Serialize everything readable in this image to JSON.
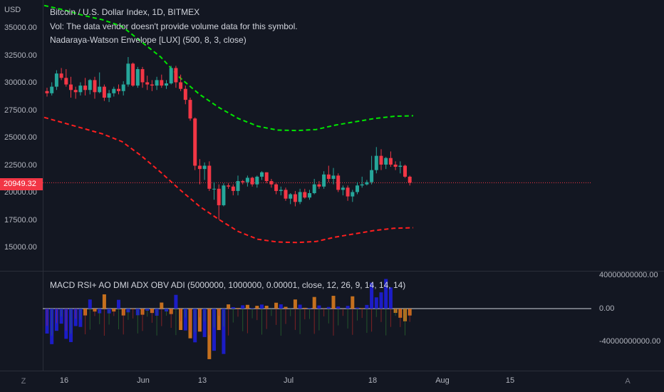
{
  "chart": {
    "currency": "USD",
    "legend_title": "Bitcoin / U.S. Dollar Index, 1D, BITMEX",
    "legend_volume": "Vol: The data vendor doesn't provide volume data for this symbol.",
    "legend_envelope": "Nadaraya-Watson Envelope [LUX] (500, 8, 3, close)",
    "last_price": "20949.32",
    "y_ticks": [
      "35000.00",
      "32500.00",
      "30000.00",
      "27500.00",
      "25000.00",
      "22500.00",
      "20000.00",
      "17500.00",
      "15000.00"
    ],
    "x_ticks": [
      "16",
      "Jun",
      "13",
      "Jul",
      "18",
      "Aug",
      "15"
    ],
    "timezone_button": "Z",
    "auto_scale_button": "A",
    "colors": {
      "up": "#26a69a",
      "down": "#f23645",
      "upper_band": "#00e600",
      "lower_band": "#ff1f1f",
      "background": "#131722"
    }
  },
  "indicator": {
    "legend": "MACD RSI+ AO DMI ADX OBV ADI (5000000, 1000000, 0.00001, close, 12, 26, 9, 14, 14, 14)",
    "axis_ticks": [
      "40000000000.00",
      "0.00",
      "-40000000000.00"
    ]
  },
  "chart_data": {
    "type": "candlestick",
    "candles": [
      [
        29300,
        29600,
        28800,
        29100
      ],
      [
        29100,
        30100,
        28900,
        29700
      ],
      [
        29700,
        31200,
        29400,
        30900
      ],
      [
        30900,
        31400,
        30300,
        30500
      ],
      [
        30500,
        31300,
        29700,
        29900
      ],
      [
        29900,
        30600,
        28700,
        29400
      ],
      [
        29400,
        29700,
        28600,
        29200
      ],
      [
        29200,
        30100,
        28900,
        29800
      ],
      [
        29800,
        30500,
        28900,
        29400
      ],
      [
        29400,
        30400,
        29000,
        30300
      ],
      [
        30300,
        30600,
        28600,
        29200
      ],
      [
        29200,
        31000,
        29100,
        29700
      ],
      [
        29700,
        29900,
        28400,
        28700
      ],
      [
        28700,
        29400,
        28300,
        29100
      ],
      [
        29100,
        29700,
        28800,
        29500
      ],
      [
        29500,
        29900,
        29000,
        29300
      ],
      [
        29300,
        30200,
        28900,
        29900
      ],
      [
        29900,
        32400,
        29700,
        31800
      ],
      [
        31800,
        31900,
        29700,
        29800
      ],
      [
        29800,
        31500,
        29600,
        31300
      ],
      [
        31300,
        31500,
        29600,
        30100
      ],
      [
        30100,
        30700,
        29400,
        29900
      ],
      [
        29900,
        30300,
        29300,
        29800
      ],
      [
        29800,
        30600,
        29400,
        30300
      ],
      [
        30300,
        30800,
        29600,
        29800
      ],
      [
        29800,
        30300,
        29500,
        30000
      ],
      [
        30000,
        31600,
        29900,
        31400
      ],
      [
        31400,
        31600,
        29600,
        30100
      ],
      [
        30100,
        30800,
        29300,
        29500
      ],
      [
        29500,
        29800,
        28100,
        28500
      ],
      [
        28500,
        28700,
        26600,
        26800
      ],
      [
        26800,
        26900,
        22100,
        22500
      ],
      [
        22500,
        23100,
        20800,
        22200
      ],
      [
        22200,
        22800,
        21200,
        22500
      ],
      [
        22500,
        22900,
        20200,
        20400
      ],
      [
        20400,
        21000,
        19400,
        20400
      ],
      [
        20400,
        20800,
        17600,
        18900
      ],
      [
        18900,
        20900,
        18800,
        20700
      ],
      [
        20700,
        20900,
        20400,
        20600
      ],
      [
        20600,
        20800,
        19800,
        20200
      ],
      [
        20200,
        21600,
        19800,
        21100
      ],
      [
        21100,
        21200,
        20800,
        21000
      ],
      [
        21000,
        21600,
        20600,
        21400
      ],
      [
        21400,
        21500,
        20600,
        20800
      ],
      [
        20800,
        21600,
        20500,
        21500
      ],
      [
        21500,
        22000,
        21200,
        21900
      ],
      [
        21900,
        21900,
        20900,
        21100
      ],
      [
        21100,
        21300,
        20500,
        20800
      ],
      [
        20800,
        20900,
        19900,
        20200
      ],
      [
        20200,
        20600,
        19800,
        20300
      ],
      [
        20300,
        20500,
        19300,
        19500
      ],
      [
        19500,
        20000,
        19000,
        19900
      ],
      [
        19900,
        20200,
        18800,
        19200
      ],
      [
        19200,
        20400,
        19000,
        20100
      ],
      [
        20100,
        20400,
        19500,
        19600
      ],
      [
        19600,
        20300,
        19400,
        20000
      ],
      [
        20000,
        21300,
        19900,
        20800
      ],
      [
        20800,
        21100,
        20400,
        20600
      ],
      [
        20600,
        22000,
        20400,
        21700
      ],
      [
        21700,
        22500,
        21000,
        21300
      ],
      [
        21300,
        22300,
        20800,
        21600
      ],
      [
        21600,
        21800,
        20100,
        20300
      ],
      [
        20300,
        20700,
        19800,
        20500
      ],
      [
        20500,
        20700,
        19300,
        19700
      ],
      [
        19700,
        20300,
        19200,
        20100
      ],
      [
        20100,
        21000,
        19900,
        20700
      ],
      [
        20700,
        21500,
        20500,
        20800
      ],
      [
        20800,
        21200,
        20700,
        21000
      ],
      [
        21000,
        23400,
        20800,
        22100
      ],
      [
        22100,
        24200,
        21800,
        23400
      ],
      [
        23400,
        24000,
        22100,
        22600
      ],
      [
        22600,
        23300,
        22200,
        23200
      ],
      [
        23200,
        23800,
        22400,
        22600
      ],
      [
        22600,
        22900,
        22100,
        22400
      ],
      [
        22400,
        22900,
        21800,
        22500
      ],
      [
        22500,
        22600,
        21400,
        21500
      ],
      [
        21500,
        21600,
        20700,
        20950
      ]
    ],
    "upper_envelope": [
      37100,
      36700,
      36200,
      35800,
      35200,
      33800,
      32400,
      30500,
      29000,
      27800,
      26800,
      26100,
      25750,
      25700,
      25800,
      26200,
      26500,
      26800,
      27000,
      27050
    ],
    "lower_envelope": [
      26900,
      26400,
      25900,
      25400,
      24700,
      23400,
      21900,
      20300,
      18800,
      17600,
      16500,
      15800,
      15550,
      15500,
      15600,
      16000,
      16300,
      16600,
      16800,
      16850
    ]
  }
}
